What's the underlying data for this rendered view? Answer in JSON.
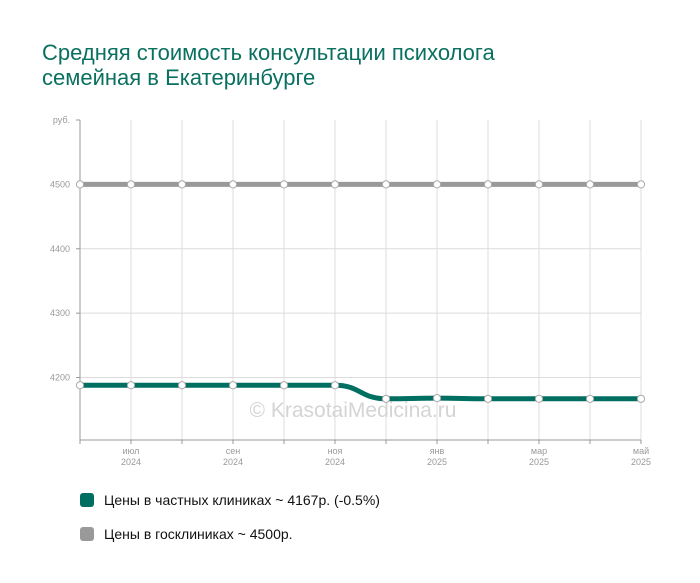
{
  "chart_data": {
    "type": "line",
    "title": [
      "Средняя стоимость консультации психолога",
      "семейная в Екатеринбурге"
    ],
    "y_unit": "руб.",
    "yticks": [
      4200,
      4300,
      4400,
      4500
    ],
    "ylim": [
      4103,
      4600
    ],
    "x": [
      "2024-06",
      "2024-07",
      "2024-08",
      "2024-09",
      "2024-10",
      "2024-11",
      "2024-12",
      "2025-01",
      "2025-02",
      "2025-03",
      "2025-04",
      "2025-05"
    ],
    "xtick_labels": [
      {
        "month": "июл",
        "year": "2024",
        "index": 1
      },
      {
        "month": "сен",
        "year": "2024",
        "index": 3
      },
      {
        "month": "ноя",
        "year": "2024",
        "index": 5
      },
      {
        "month": "янв",
        "year": "2025",
        "index": 7
      },
      {
        "month": "мар",
        "year": "2025",
        "index": 9
      },
      {
        "month": "май",
        "year": "2025",
        "index": 11
      }
    ],
    "series": [
      {
        "name": "Цены в госклиниках ~ 4500р.",
        "color": "#999999",
        "values": [
          4500,
          4500,
          4500,
          4500,
          4500,
          4500,
          4500,
          4500,
          4500,
          4500,
          4500,
          4500
        ]
      },
      {
        "name": "Цены в частных клиниках ~ 4167р. (-0.5%)",
        "color": "#006f61",
        "values": [
          4188,
          4188,
          4188,
          4188,
          4188,
          4188,
          4167,
          4168,
          4167,
          4167,
          4167,
          4167
        ]
      }
    ],
    "grid": true,
    "legend_position": "bottom-left",
    "watermark": "© KrasotaiMedicina.ru"
  }
}
